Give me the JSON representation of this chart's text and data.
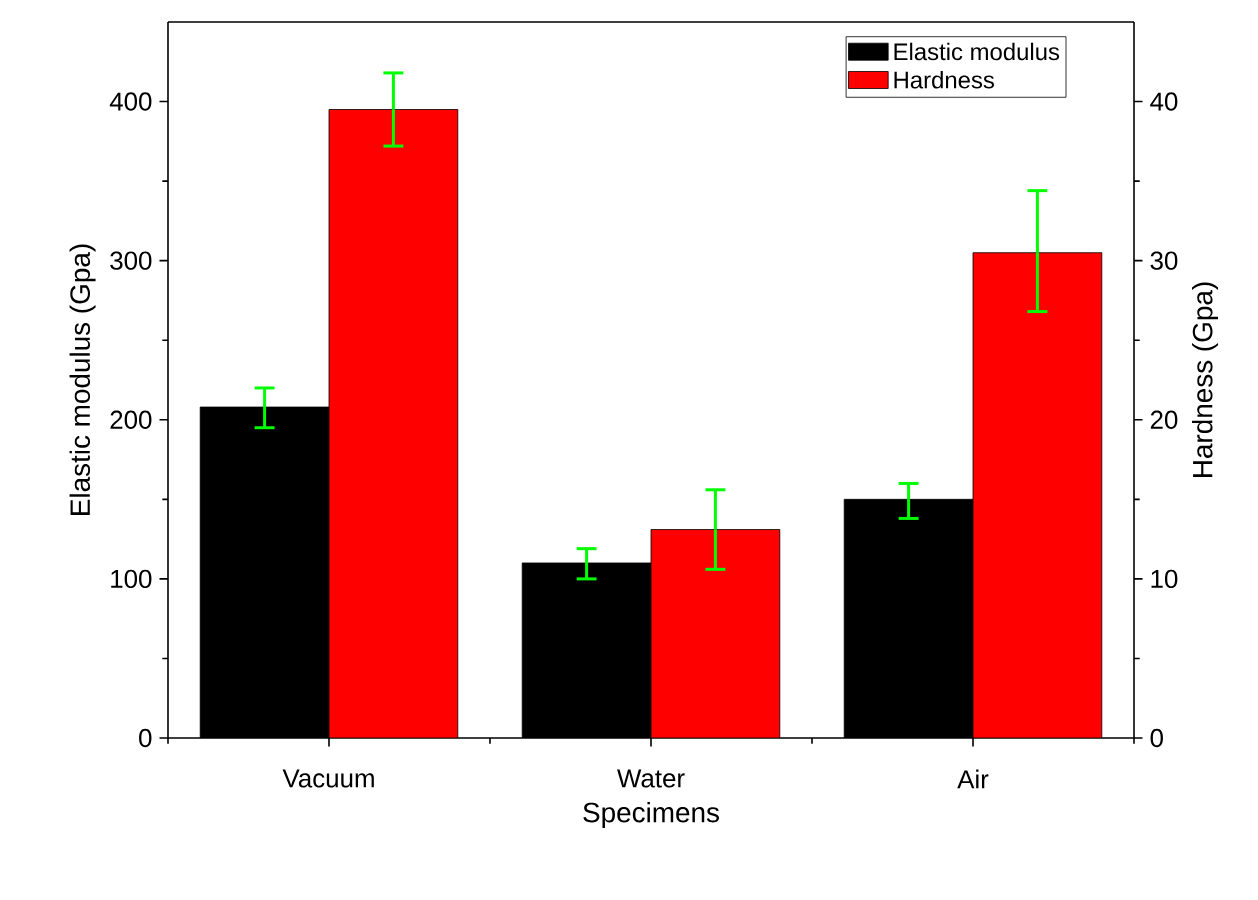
{
  "chart_data": {
    "type": "bar",
    "xlabel": "Specimens",
    "ylabel": "Elastic modulus (Gpa)",
    "y2label": "Hardness (Gpa)",
    "categories": [
      "Vacuum",
      "Water",
      "Air"
    ],
    "series": [
      {
        "name": "Elastic modulus",
        "color": "#000000",
        "values": [
          208,
          110,
          150
        ],
        "errors": [
          [
            195,
            220
          ],
          [
            100,
            119
          ],
          [
            138,
            160
          ]
        ]
      },
      {
        "name": "Hardness",
        "color": "#ff0000",
        "axis": "y2",
        "values": [
          39.5,
          13.1,
          30.5
        ],
        "errors": [
          [
            37.2,
            41.8
          ],
          [
            10.6,
            15.6
          ],
          [
            26.8,
            34.4
          ]
        ]
      }
    ],
    "ylim": [
      0,
      450
    ],
    "yticks": [
      0,
      100,
      200,
      300,
      400
    ],
    "y2lim": [
      0,
      45
    ],
    "y2ticks": [
      0,
      10,
      20,
      30,
      40
    ],
    "grid": false,
    "legend": "top right"
  }
}
